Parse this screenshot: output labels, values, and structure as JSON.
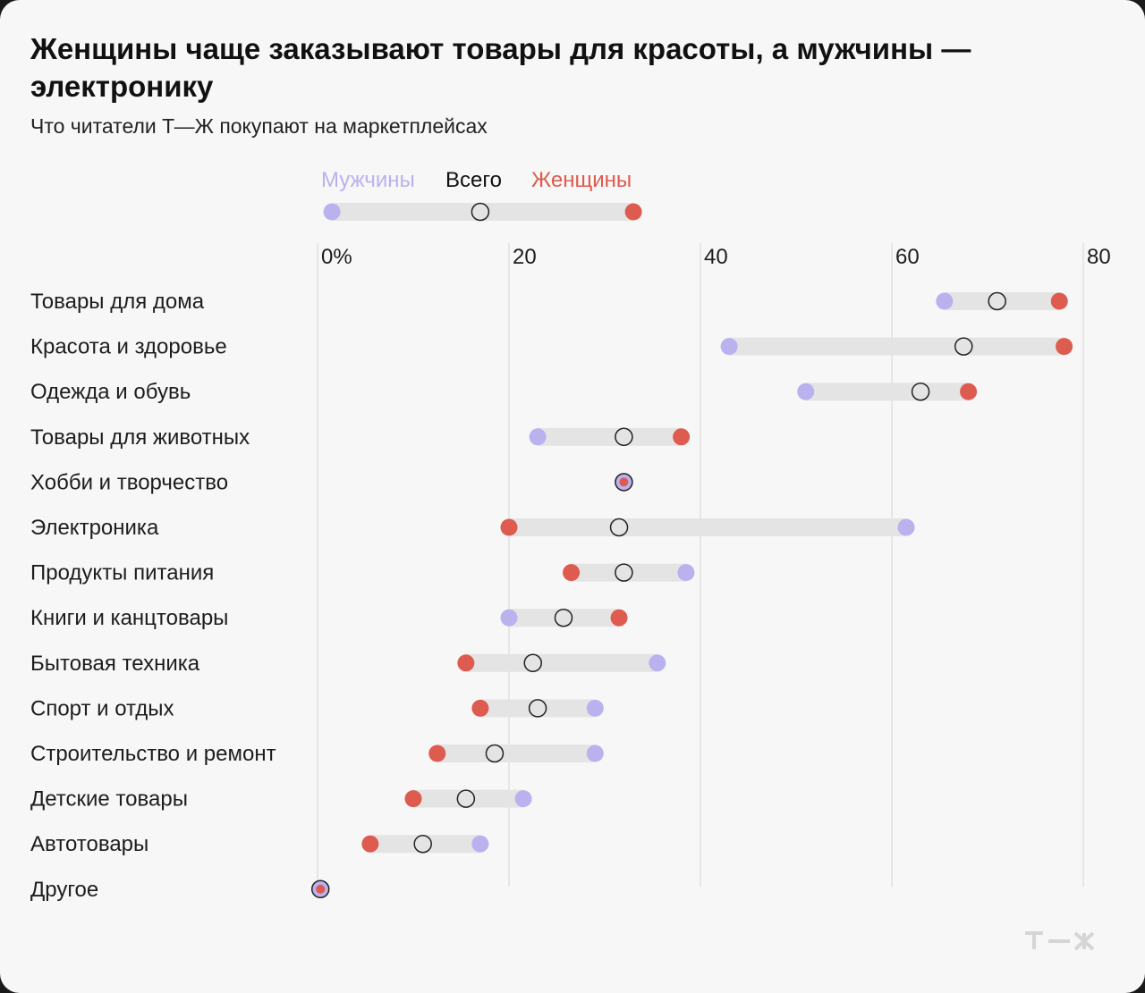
{
  "chart_data": {
    "type": "dot-range",
    "title": "Женщины чаще заказывают товары для красоты, а мужчины — электронику",
    "subtitle": "Что читатели Т—Ж покупают на маркетплейсах",
    "legend": {
      "men": "Мужчины",
      "total": "Всего",
      "women": "Женщины",
      "example": {
        "men": 1.5,
        "total": 17,
        "women": 33
      }
    },
    "ticks": [
      {
        "value": 0,
        "label": "0%"
      },
      {
        "value": 20,
        "label": "20"
      },
      {
        "value": 40,
        "label": "40"
      },
      {
        "value": 60,
        "label": "60"
      },
      {
        "value": 80,
        "label": "80"
      }
    ],
    "xlim": [
      0,
      80
    ],
    "unit": "%",
    "colors": {
      "men": "#b9b2ee",
      "women": "#dd5b4f",
      "total": "#e4e4e4",
      "range": "#e4e4e4"
    },
    "categories": [
      "Товары для дома",
      "Красота и здоровье",
      "Одежда и обувь",
      "Товары для животных",
      "Хобби и творчество",
      "Электроника",
      "Продукты питания",
      "Книги и канцтовары",
      "Бытовая техника",
      "Спорт и отдых",
      "Строительство и ремонт",
      "Детские товары",
      "Автотовары",
      "Другое"
    ],
    "series": [
      {
        "name": "Мужчины",
        "key": "men",
        "values": [
          65.5,
          43,
          51,
          23,
          32,
          61.5,
          38.5,
          20,
          35.5,
          29,
          29,
          21.5,
          17,
          0.3
        ]
      },
      {
        "name": "Всего",
        "key": "total",
        "values": [
          71,
          67.5,
          63,
          32,
          32,
          31.5,
          32,
          25.7,
          22.5,
          23,
          18.5,
          15.5,
          11,
          0.3
        ]
      },
      {
        "name": "Женщины",
        "key": "women",
        "values": [
          77.5,
          78,
          68,
          38,
          32,
          20,
          26.5,
          31.5,
          15.5,
          17,
          12.5,
          10,
          5.5,
          0.3
        ]
      }
    ]
  },
  "logo": {
    "text": "Т—Ж"
  }
}
